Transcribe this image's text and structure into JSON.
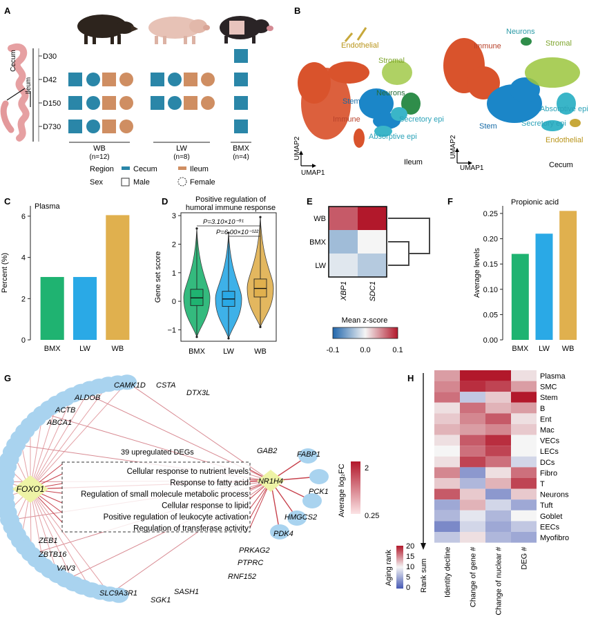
{
  "panels": {
    "A": {
      "label": "A",
      "gut_labels": {
        "cecum": "Cecum",
        "ileum": "Ileum"
      },
      "timepoints": [
        "D30",
        "D42",
        "D150",
        "D730"
      ],
      "groups": [
        {
          "name": "WB",
          "n": "(n=12)"
        },
        {
          "name": "LW",
          "n": "(n=8)"
        },
        {
          "name": "BMX",
          "n": "(n=4)"
        }
      ],
      "legend": {
        "region_title": "Region",
        "cecum": "Cecum",
        "ileum": "Ileum",
        "sex_title": "Sex",
        "male": "Male",
        "female": "Female"
      },
      "colors": {
        "cecum": "#2a86a8",
        "ileum": "#cf8e62"
      },
      "pig_icons": [
        "boar-icon",
        "domestic-pig-icon",
        "mini-pig-icon"
      ]
    },
    "B": {
      "label": "B",
      "umap_left": {
        "clusters": [
          "Endothelial",
          "Stromal",
          "Neurons",
          "Stem",
          "Immune",
          "Secretory epi",
          "Absorptive epi"
        ],
        "tissue": "Ileum"
      },
      "umap_right": {
        "clusters": [
          "Neurons",
          "Immune",
          "Stromal",
          "Absorptive epi",
          "Secretory epi",
          "Stem",
          "Endothelial"
        ],
        "tissue": "Cecum"
      },
      "axis_x": "UMAP1",
      "axis_y": "UMAP2",
      "colors": {
        "immune": "#d9532c",
        "stem": "#1b86c8",
        "stromal": "#9bc53d",
        "neurons": "#2f8d4a",
        "epi": "#3ab5c8",
        "endothelial": "#c7a83b"
      }
    },
    "H": {
      "label": "H",
      "rows": [
        "Plasma",
        "SMC",
        "Stem",
        "B",
        "Ent",
        "Mac",
        "VECs",
        "LECs",
        "DCs",
        "Fibro",
        "T",
        "Neurons",
        "Tuft",
        "Goblet",
        "EECs",
        "Myofibro"
      ],
      "columns": [
        "Identity decline",
        "Change of gene #",
        "Change of nuclear #",
        "DEG #"
      ],
      "ranks": [
        [
          14,
          20,
          20,
          11
        ],
        [
          15,
          19,
          18,
          14
        ],
        [
          16,
          7,
          12,
          20
        ],
        [
          11,
          16,
          13,
          14
        ],
        [
          12,
          15,
          17,
          11
        ],
        [
          13,
          14,
          15,
          12
        ],
        [
          11,
          17,
          19,
          10
        ],
        [
          10,
          16,
          18,
          10
        ],
        [
          11,
          18,
          16,
          8
        ],
        [
          15,
          4,
          11,
          16
        ],
        [
          12,
          6,
          13,
          18
        ],
        [
          17,
          12,
          4,
          12
        ],
        [
          5,
          13,
          8,
          5
        ],
        [
          6,
          9,
          6,
          10
        ],
        [
          3,
          8,
          5,
          7
        ],
        [
          7,
          11,
          6,
          5
        ]
      ],
      "axis_label": "Rank sum",
      "colorbar": {
        "title": "Aging rank",
        "ticks": [
          "20",
          "15",
          "10",
          "5",
          "0"
        ]
      }
    },
    "G": {
      "label": "G",
      "hubs": [
        "FOXO1",
        "NR1H4"
      ],
      "genes_top": [
        "ABCA1",
        "ACTB",
        "ALDOB",
        "CAMK1D",
        "CSTA",
        "DTX3L",
        "GAB2"
      ],
      "genes_right": [
        "FABP1",
        "PCK1",
        "HMGCS2",
        "PDK4"
      ],
      "genes_bottom": [
        "ZEB1",
        "ZBTB16",
        "VAV3",
        "SLC9A3R1",
        "SGK1",
        "SASH1",
        "RNF152",
        "PTPRC",
        "PRKAG2"
      ],
      "deg_label": "39 upregulated DEGs",
      "go_terms": [
        "Cellular response to nutrient levels",
        "Response to fatty acid",
        "Regulation of small molecule metabolic process",
        "Cellular response to lipid",
        "Positive regulation of leukocyte activation",
        "Regulation of transferase activity"
      ],
      "colorbar": {
        "title": "Average log₂FC",
        "ticks": [
          "2",
          "0.25"
        ]
      }
    }
  },
  "chart_data": [
    {
      "panel": "C",
      "type": "bar",
      "title": "Plasma",
      "ylabel": "Percent (%)",
      "categories": [
        "BMX",
        "LW",
        "WB"
      ],
      "values": [
        3.05,
        3.05,
        6.05
      ],
      "colors": [
        "#1fb371",
        "#2aa9e6",
        "#e0b04e"
      ],
      "ylim": [
        0,
        6.5
      ],
      "yticks": [
        0,
        2,
        4,
        6
      ]
    },
    {
      "panel": "D",
      "type": "violin",
      "title": "Positive regulation of humoral immune response",
      "ylabel": "Gene set score",
      "categories": [
        "BMX",
        "LW",
        "WB"
      ],
      "medians": [
        0.12,
        0.08,
        0.45
      ],
      "q1": [
        -0.15,
        -0.18,
        0.15
      ],
      "q3": [
        0.42,
        0.35,
        0.78
      ],
      "min": [
        -1.25,
        -1.3,
        -0.9
      ],
      "max": [
        2.55,
        2.4,
        2.95
      ],
      "colors": [
        "#1fb371",
        "#2aa9e6",
        "#e0b04e"
      ],
      "ylim": [
        -1.4,
        3.1
      ],
      "yticks": [
        -1,
        0,
        1,
        2,
        3
      ],
      "annotations": [
        "P=3.10×10⁻⁹¹",
        "P=6.00×10⁻¹²²"
      ]
    },
    {
      "panel": "E",
      "type": "heatmap",
      "rows": [
        "WB",
        "BMX",
        "LW"
      ],
      "columns": [
        "XBP1",
        "SDC1"
      ],
      "values": [
        [
          0.07,
          0.1
        ],
        [
          -0.04,
          0.0
        ],
        [
          -0.01,
          -0.03
        ]
      ],
      "colorbar_label": "Mean z-score",
      "colorbar_ticks": [
        "-0.1",
        "0.0",
        "0.1"
      ],
      "range": [
        -0.1,
        0.1
      ]
    },
    {
      "panel": "F",
      "type": "bar",
      "title": "Propionic acid",
      "ylabel": "Average levels",
      "categories": [
        "BMX",
        "LW",
        "WB"
      ],
      "values": [
        0.17,
        0.21,
        0.255
      ],
      "colors": [
        "#1fb371",
        "#2aa9e6",
        "#e0b04e"
      ],
      "ylim": [
        0,
        0.265
      ],
      "yticks": [
        "0.00",
        "0.05",
        "0.10",
        "0.15",
        "0.20",
        "0.25"
      ]
    }
  ]
}
